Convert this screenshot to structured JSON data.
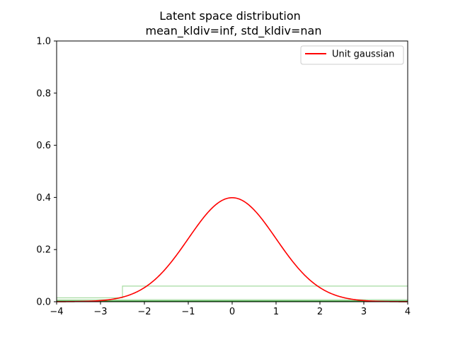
{
  "chart_data": {
    "type": "line",
    "title": "Latent space distribution",
    "subtitle": "mean_kldiv=inf, std_kldiv=nan",
    "xlabel": "",
    "ylabel": "",
    "xlim": [
      -4,
      4
    ],
    "ylim": [
      0,
      1.0
    ],
    "xticks": [
      "−4",
      "−3",
      "−2",
      "−1",
      "0",
      "1",
      "2",
      "3",
      "4"
    ],
    "xtick_values": [
      -4,
      -3,
      -2,
      -1,
      0,
      1,
      2,
      3,
      4
    ],
    "yticks": [
      "0.0",
      "0.2",
      "0.4",
      "0.6",
      "0.8",
      "1.0"
    ],
    "ytick_values": [
      0,
      0.2,
      0.4,
      0.6,
      0.8,
      1.0
    ],
    "grid": false,
    "legend": {
      "placement": "upper right",
      "entries": [
        {
          "name": "Unit gaussian",
          "color": "#ff0000"
        }
      ]
    },
    "series": [
      {
        "name": "Unit gaussian",
        "color": "#ff0000",
        "kind": "line",
        "x": [
          -4.0,
          -3.5,
          -3.0,
          -2.5,
          -2.0,
          -1.5,
          -1.0,
          -0.5,
          0.0,
          0.5,
          1.0,
          1.5,
          2.0,
          2.5,
          3.0,
          3.5,
          4.0
        ],
        "y": [
          0.0001,
          0.0009,
          0.0044,
          0.0175,
          0.054,
          0.1295,
          0.242,
          0.3521,
          0.3989,
          0.3521,
          0.242,
          0.1295,
          0.054,
          0.0175,
          0.0044,
          0.0009,
          0.0001
        ]
      },
      {
        "color": "#a6dba0",
        "kind": "step-histogram",
        "x": [
          -4.0,
          -2.5,
          -2.5,
          4.0
        ],
        "y": [
          0.015,
          0.015,
          0.06,
          0.06
        ]
      },
      {
        "color": "#a6dba0",
        "kind": "step-histogram",
        "x": [
          -4.0,
          4.0
        ],
        "y": [
          0.008,
          0.008
        ]
      },
      {
        "color": "#2ca02c",
        "kind": "step-histogram",
        "x": [
          -4.0,
          4.0
        ],
        "y": [
          0.003,
          0.003
        ]
      }
    ]
  }
}
